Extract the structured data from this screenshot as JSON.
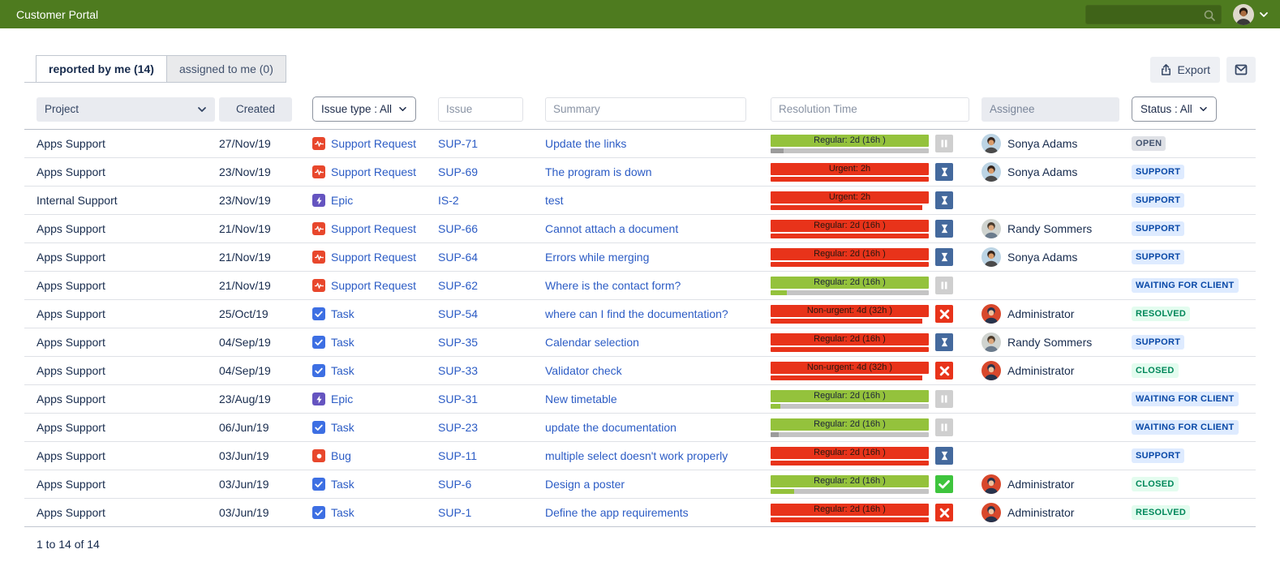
{
  "topbar": {
    "title": "Customer Portal",
    "search_value": ""
  },
  "tabs": [
    {
      "label": "reported by me (14)",
      "active": true
    },
    {
      "label": "assigned to me (0)",
      "active": false
    }
  ],
  "toolbar": {
    "export_label": "Export"
  },
  "filters": {
    "project_label": "Project",
    "created_label": "Created",
    "issue_type_label": "Issue type : All",
    "issue_placeholder": "Issue",
    "summary_placeholder": "Summary",
    "resolution_placeholder": "Resolution Time",
    "assignee_placeholder": "Assignee",
    "status_label": "Status : All"
  },
  "rows": [
    {
      "project": "Apps Support",
      "created": "27/Nov/19",
      "type": {
        "label": "Support Request",
        "icon": "support"
      },
      "key": "SUP-71",
      "summary": "Update the links",
      "sla": {
        "label": "Regular: 2d (16h )",
        "bar": "green",
        "progress": {
          "track": "gray",
          "fill": "darkgray",
          "pct": 8
        },
        "state": "pause"
      },
      "assignee": {
        "name": "Sonya Adams",
        "avatar": "sonya"
      },
      "status": {
        "label": "OPEN",
        "style": "gray"
      }
    },
    {
      "project": "Apps Support",
      "created": "23/Nov/19",
      "type": {
        "label": "Support Request",
        "icon": "support"
      },
      "key": "SUP-69",
      "summary": "The program is down",
      "sla": {
        "label": "Urgent: 2h",
        "bar": "red",
        "progress": {
          "track": "red",
          "fill": "red",
          "pct": 100
        },
        "state": "hourglass"
      },
      "assignee": {
        "name": "Sonya Adams",
        "avatar": "sonya"
      },
      "status": {
        "label": "SUPPORT",
        "style": "blue"
      }
    },
    {
      "project": "Internal Support",
      "created": "23/Nov/19",
      "type": {
        "label": "Epic",
        "icon": "epic"
      },
      "key": "IS-2",
      "summary": "test",
      "sla": {
        "label": "Urgent: 2h",
        "bar": "red",
        "progress": {
          "track": "red",
          "fill": "red",
          "pct": 96
        },
        "state": "hourglass"
      },
      "assignee": null,
      "status": {
        "label": "SUPPORT",
        "style": "blue"
      }
    },
    {
      "project": "Apps Support",
      "created": "21/Nov/19",
      "type": {
        "label": "Support Request",
        "icon": "support"
      },
      "key": "SUP-66",
      "summary": "Cannot attach a document",
      "sla": {
        "label": "Regular: 2d (16h )",
        "bar": "red",
        "progress": {
          "track": "red",
          "fill": "red",
          "pct": 100
        },
        "state": "hourglass"
      },
      "assignee": {
        "name": "Randy Sommers",
        "avatar": "randy"
      },
      "status": {
        "label": "SUPPORT",
        "style": "blue"
      }
    },
    {
      "project": "Apps Support",
      "created": "21/Nov/19",
      "type": {
        "label": "Support Request",
        "icon": "support"
      },
      "key": "SUP-64",
      "summary": "Errors while merging",
      "sla": {
        "label": "Regular: 2d (16h )",
        "bar": "red",
        "progress": {
          "track": "red",
          "fill": "red",
          "pct": 100
        },
        "state": "hourglass"
      },
      "assignee": {
        "name": "Sonya Adams",
        "avatar": "sonya"
      },
      "status": {
        "label": "SUPPORT",
        "style": "blue"
      }
    },
    {
      "project": "Apps Support",
      "created": "21/Nov/19",
      "type": {
        "label": "Support Request",
        "icon": "support"
      },
      "key": "SUP-62",
      "summary": "Where is the contact form?",
      "sla": {
        "label": "Regular: 2d (16h )",
        "bar": "green",
        "progress": {
          "track": "gray",
          "fill": "green",
          "pct": 10
        },
        "state": "pause"
      },
      "assignee": null,
      "status": {
        "label": "WAITING FOR CLIENT",
        "style": "blue"
      }
    },
    {
      "project": "Apps Support",
      "created": "25/Oct/19",
      "type": {
        "label": "Task",
        "icon": "task"
      },
      "key": "SUP-54",
      "summary": "where can I find the documentation?",
      "sla": {
        "label": "Non-urgent: 4d (32h )",
        "bar": "red",
        "progress": {
          "track": "red",
          "fill": "red",
          "pct": 96
        },
        "state": "fail"
      },
      "assignee": {
        "name": "Administrator",
        "avatar": "admin"
      },
      "status": {
        "label": "RESOLVED",
        "style": "green"
      }
    },
    {
      "project": "Apps Support",
      "created": "04/Sep/19",
      "type": {
        "label": "Task",
        "icon": "task"
      },
      "key": "SUP-35",
      "summary": "Calendar selection",
      "sla": {
        "label": "Regular: 2d (16h )",
        "bar": "red",
        "progress": {
          "track": "red",
          "fill": "red",
          "pct": 100
        },
        "state": "hourglass"
      },
      "assignee": {
        "name": "Randy Sommers",
        "avatar": "randy"
      },
      "status": {
        "label": "SUPPORT",
        "style": "blue"
      }
    },
    {
      "project": "Apps Support",
      "created": "04/Sep/19",
      "type": {
        "label": "Task",
        "icon": "task"
      },
      "key": "SUP-33",
      "summary": "Validator check",
      "sla": {
        "label": "Non-urgent: 4d (32h )",
        "bar": "red",
        "progress": {
          "track": "red",
          "fill": "red",
          "pct": 96
        },
        "state": "fail"
      },
      "assignee": {
        "name": "Administrator",
        "avatar": "admin"
      },
      "status": {
        "label": "CLOSED",
        "style": "green"
      }
    },
    {
      "project": "Apps Support",
      "created": "23/Aug/19",
      "type": {
        "label": "Epic",
        "icon": "epic"
      },
      "key": "SUP-31",
      "summary": "New timetable",
      "sla": {
        "label": "Regular: 2d (16h )",
        "bar": "green",
        "progress": {
          "track": "gray",
          "fill": "green",
          "pct": 6
        },
        "state": "pause"
      },
      "assignee": null,
      "status": {
        "label": "WAITING FOR CLIENT",
        "style": "blue"
      }
    },
    {
      "project": "Apps Support",
      "created": "06/Jun/19",
      "type": {
        "label": "Task",
        "icon": "task"
      },
      "key": "SUP-23",
      "summary": "update the documentation",
      "sla": {
        "label": "Regular: 2d (16h )",
        "bar": "green",
        "progress": {
          "track": "gray",
          "fill": "darkgray",
          "pct": 5
        },
        "state": "pause"
      },
      "assignee": null,
      "status": {
        "label": "WAITING FOR CLIENT",
        "style": "blue"
      }
    },
    {
      "project": "Apps Support",
      "created": "03/Jun/19",
      "type": {
        "label": "Bug",
        "icon": "bug"
      },
      "key": "SUP-11",
      "summary": "multiple select doesn't work properly",
      "sla": {
        "label": "Regular: 2d (16h )",
        "bar": "red",
        "progress": {
          "track": "red",
          "fill": "red",
          "pct": 100
        },
        "state": "hourglass"
      },
      "assignee": null,
      "status": {
        "label": "SUPPORT",
        "style": "blue"
      }
    },
    {
      "project": "Apps Support",
      "created": "03/Jun/19",
      "type": {
        "label": "Task",
        "icon": "task"
      },
      "key": "SUP-6",
      "summary": "Design a poster",
      "sla": {
        "label": "Regular: 2d (16h )",
        "bar": "green",
        "progress": {
          "track": "gray",
          "fill": "green",
          "pct": 15
        },
        "state": "success"
      },
      "assignee": {
        "name": "Administrator",
        "avatar": "admin"
      },
      "status": {
        "label": "CLOSED",
        "style": "green"
      }
    },
    {
      "project": "Apps Support",
      "created": "03/Jun/19",
      "type": {
        "label": "Task",
        "icon": "task"
      },
      "key": "SUP-1",
      "summary": "Define the app requirements",
      "sla": {
        "label": "Regular: 2d (16h )",
        "bar": "red",
        "progress": {
          "track": "red",
          "fill": "red",
          "pct": 100
        },
        "state": "fail"
      },
      "assignee": {
        "name": "Administrator",
        "avatar": "admin"
      },
      "status": {
        "label": "RESOLVED",
        "style": "green"
      }
    }
  ],
  "footer": {
    "range": "1 to 14 of 14"
  },
  "colors": {
    "topbar_bg": "#4e7b1f",
    "topbar_search_bg": "#3f6318",
    "link": "#2c5cc5",
    "text": "#172b4d",
    "muted": "#8993a4",
    "sla_green": "#94c23c",
    "sla_red": "#e8331a",
    "sla_track": "#c4c4c4",
    "sla_fill_dark": "#9b9b9b",
    "state_pause": "#cfcfcf",
    "state_hourglass": "#44699d",
    "state_fail": "#e8331a",
    "state_success": "#3ec43d",
    "type_support": "#e8472c",
    "type_task": "#3d6fe3",
    "type_epic": "#6554c0",
    "type_bug": "#e8472c",
    "badge_gray_bg": "#dfe1e6",
    "badge_gray_fg": "#42526e",
    "badge_blue_bg": "#deebff",
    "badge_blue_fg": "#0747a6",
    "badge_green_bg": "#e3fcef",
    "badge_green_fg": "#00875a",
    "avatars": {
      "user": {
        "bg": "#ded8cc",
        "hair": "#241a12",
        "skin": "#a96b3f",
        "clothes": "#3a3a3a"
      },
      "sonya": {
        "bg": "#bcd4e4",
        "hair": "#33241d",
        "skin": "#d99c6b",
        "clothes": "#4a4a4a"
      },
      "randy": {
        "bg": "#cfd3cf",
        "hair": "#4a3b2d",
        "skin": "#dba77d",
        "clothes": "#6b7b8c"
      },
      "admin": {
        "bg": "#d8482c",
        "hair": "#27334c",
        "skin": "#f0c09c",
        "clothes": "#27334c"
      }
    }
  }
}
